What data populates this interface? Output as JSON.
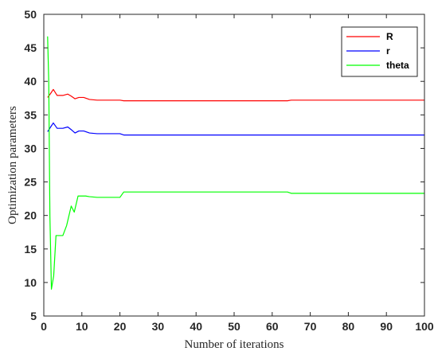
{
  "chart_data": {
    "type": "line",
    "title": "",
    "xlabel": "Number of iterations",
    "ylabel": "Optimization parameters",
    "xlim": [
      0,
      100
    ],
    "ylim": [
      5,
      50
    ],
    "xticks": [
      0,
      10,
      20,
      30,
      40,
      50,
      60,
      70,
      80,
      90,
      100
    ],
    "yticks": [
      5,
      10,
      15,
      20,
      25,
      30,
      35,
      40,
      45,
      50
    ],
    "grid": false,
    "legend_position": "top-right",
    "series": [
      {
        "name": "R",
        "color": "#ff0000",
        "points": [
          [
            1,
            37.6
          ],
          [
            1.8,
            38.2
          ],
          [
            2.5,
            38.8
          ],
          [
            3.5,
            37.9
          ],
          [
            5,
            37.9
          ],
          [
            6.3,
            38.1
          ],
          [
            7.2,
            37.8
          ],
          [
            8.2,
            37.4
          ],
          [
            9.2,
            37.6
          ],
          [
            10.5,
            37.6
          ],
          [
            12,
            37.3
          ],
          [
            14,
            37.2
          ],
          [
            20,
            37.2
          ],
          [
            21,
            37.1
          ],
          [
            64,
            37.1
          ],
          [
            65,
            37.2
          ],
          [
            100,
            37.2
          ]
        ]
      },
      {
        "name": "r",
        "color": "#0000ff",
        "points": [
          [
            1,
            32.5
          ],
          [
            1.8,
            33.2
          ],
          [
            2.5,
            33.8
          ],
          [
            3.5,
            33.0
          ],
          [
            5,
            33.0
          ],
          [
            6.3,
            33.2
          ],
          [
            7.2,
            32.8
          ],
          [
            8.2,
            32.3
          ],
          [
            9.2,
            32.6
          ],
          [
            10.5,
            32.6
          ],
          [
            12,
            32.3
          ],
          [
            14,
            32.2
          ],
          [
            20,
            32.2
          ],
          [
            21,
            32.0
          ],
          [
            100,
            32.0
          ]
        ]
      },
      {
        "name": "theta",
        "color": "#00ff00",
        "points": [
          [
            1,
            46.7
          ],
          [
            1.3,
            40
          ],
          [
            1.6,
            20
          ],
          [
            2,
            9.0
          ],
          [
            2.6,
            11
          ],
          [
            3.2,
            17.0
          ],
          [
            5,
            17.0
          ],
          [
            6,
            18.5
          ],
          [
            7.2,
            21.4
          ],
          [
            8,
            20.5
          ],
          [
            9,
            22.9
          ],
          [
            11,
            22.9
          ],
          [
            12,
            22.8
          ],
          [
            14,
            22.7
          ],
          [
            20,
            22.7
          ],
          [
            21,
            23.5
          ],
          [
            64,
            23.5
          ],
          [
            65,
            23.3
          ],
          [
            100,
            23.3
          ]
        ]
      }
    ]
  }
}
